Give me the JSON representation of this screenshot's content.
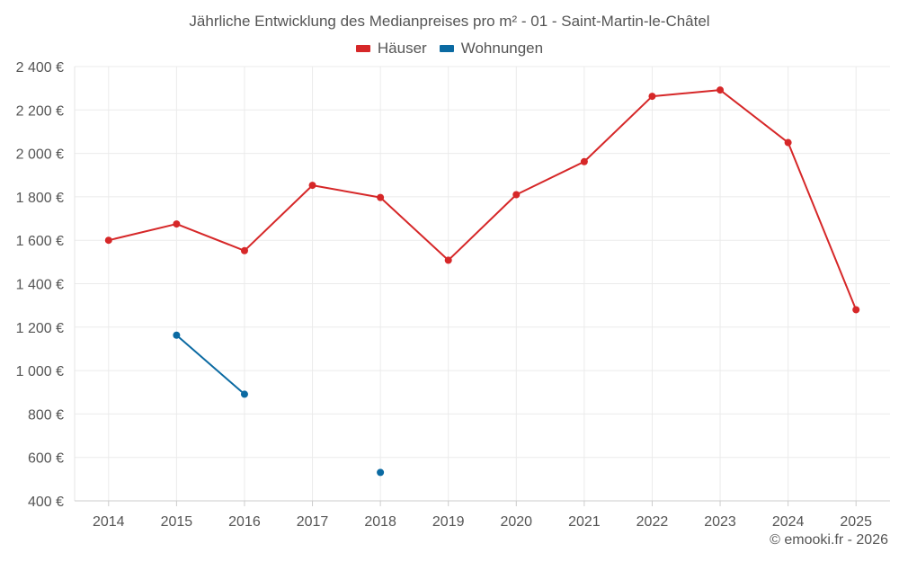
{
  "chart_data": {
    "type": "line",
    "title": "Jährliche Entwicklung des Medianpreises pro m² - 01 - Saint-Martin-le-Châtel",
    "xlabel": "",
    "ylabel": "",
    "categories": [
      "2014",
      "2015",
      "2016",
      "2017",
      "2018",
      "2019",
      "2020",
      "2021",
      "2022",
      "2023",
      "2024",
      "2025"
    ],
    "ylim": [
      400,
      2400
    ],
    "yticks": [
      400,
      600,
      800,
      1000,
      1200,
      1400,
      1600,
      1800,
      2000,
      2200,
      2400
    ],
    "ytick_labels": [
      "400 €",
      "600 €",
      "800 €",
      "1 000 €",
      "1 200 €",
      "1 400 €",
      "1 600 €",
      "1 800 €",
      "2 000 €",
      "2 200 €",
      "2 400 €"
    ],
    "grid": true,
    "legend_position": "top-center",
    "series": [
      {
        "name": "Häuser",
        "color": "#d62728",
        "values": [
          1600,
          1675,
          1552,
          1853,
          1797,
          1508,
          1810,
          1962,
          2263,
          2292,
          2050,
          1280
        ]
      },
      {
        "name": "Wohnungen",
        "color": "#0b6aa2",
        "values": [
          null,
          1163,
          891,
          null,
          531,
          null,
          null,
          null,
          null,
          null,
          null,
          null
        ]
      }
    ]
  },
  "credit": "© emooki.fr - 2026"
}
